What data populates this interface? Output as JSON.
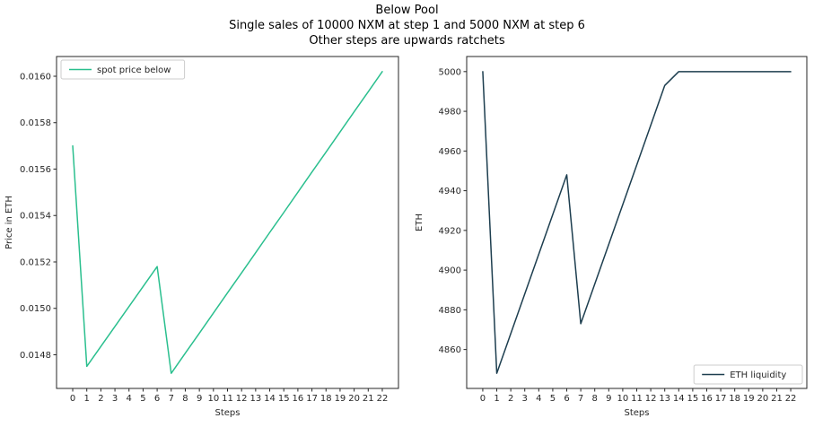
{
  "figure": {
    "title_lines": [
      "Below Pool",
      "Single sales of 10000 NXM at step 1 and 5000 NXM at step 6",
      "Other steps are upwards ratchets"
    ]
  },
  "colors": {
    "spot_price_line": "#2abf8e",
    "eth_liquidity_line": "#1d3e4f",
    "axis": "#262626",
    "tick_text": "#262626",
    "legend_border": "#cccccc",
    "legend_fill": "#ffffff"
  },
  "chart_data": [
    {
      "type": "line",
      "name": "spot-price-chart",
      "xlabel": "Steps",
      "ylabel": "Price in ETH",
      "x": [
        0,
        1,
        2,
        3,
        4,
        5,
        6,
        7,
        8,
        9,
        10,
        11,
        12,
        13,
        14,
        15,
        16,
        17,
        18,
        19,
        20,
        21,
        22
      ],
      "series": [
        {
          "name": "spot price below",
          "color": "#2abf8e",
          "values": [
            0.0157,
            0.01475,
            0.014836,
            0.014922,
            0.015008,
            0.015094,
            0.01518,
            0.01472,
            0.014807,
            0.014893,
            0.01498,
            0.015067,
            0.015153,
            0.01524,
            0.015327,
            0.015413,
            0.0155,
            0.015587,
            0.015673,
            0.01576,
            0.015847,
            0.015933,
            0.01602
          ]
        }
      ],
      "xlim": [
        -1.15,
        23.15
      ],
      "ylim": [
        0.014655,
        0.016085
      ],
      "xticks": [
        0,
        1,
        2,
        3,
        4,
        5,
        6,
        7,
        8,
        9,
        10,
        11,
        12,
        13,
        14,
        15,
        16,
        17,
        18,
        19,
        20,
        21,
        22
      ],
      "yticks": [
        0.0148,
        0.015,
        0.0152,
        0.0154,
        0.0156,
        0.0158,
        0.016
      ],
      "ytick_labels": [
        "0.0148",
        "0.0150",
        "0.0152",
        "0.0154",
        "0.0156",
        "0.0158",
        "0.0160"
      ],
      "grid": false,
      "legend": {
        "label": "spot price below",
        "position": "upper-left"
      }
    },
    {
      "type": "line",
      "name": "eth-liquidity-chart",
      "xlabel": "Steps",
      "ylabel": "ETH",
      "x": [
        0,
        1,
        2,
        3,
        4,
        5,
        6,
        7,
        8,
        9,
        10,
        11,
        12,
        13,
        14,
        15,
        16,
        17,
        18,
        19,
        20,
        21,
        22
      ],
      "series": [
        {
          "name": "ETH liquidity",
          "color": "#1d3e4f",
          "values": [
            5000,
            4848,
            4868,
            4888,
            4908,
            4928,
            4948,
            4873,
            4893,
            4913,
            4933,
            4953,
            4973,
            4993,
            5000,
            5000,
            5000,
            5000,
            5000,
            5000,
            5000,
            5000,
            5000
          ]
        }
      ],
      "xlim": [
        -1.15,
        23.15
      ],
      "ylim": [
        4840.4,
        5007.6
      ],
      "xticks": [
        0,
        1,
        2,
        3,
        4,
        5,
        6,
        7,
        8,
        9,
        10,
        11,
        12,
        13,
        14,
        15,
        16,
        17,
        18,
        19,
        20,
        21,
        22
      ],
      "yticks": [
        4860,
        4880,
        4900,
        4920,
        4940,
        4960,
        4980,
        5000
      ],
      "ytick_labels": [
        "4860",
        "4880",
        "4900",
        "4920",
        "4940",
        "4960",
        "4980",
        "5000"
      ],
      "grid": false,
      "legend": {
        "label": "ETH liquidity",
        "position": "lower-right"
      }
    }
  ]
}
